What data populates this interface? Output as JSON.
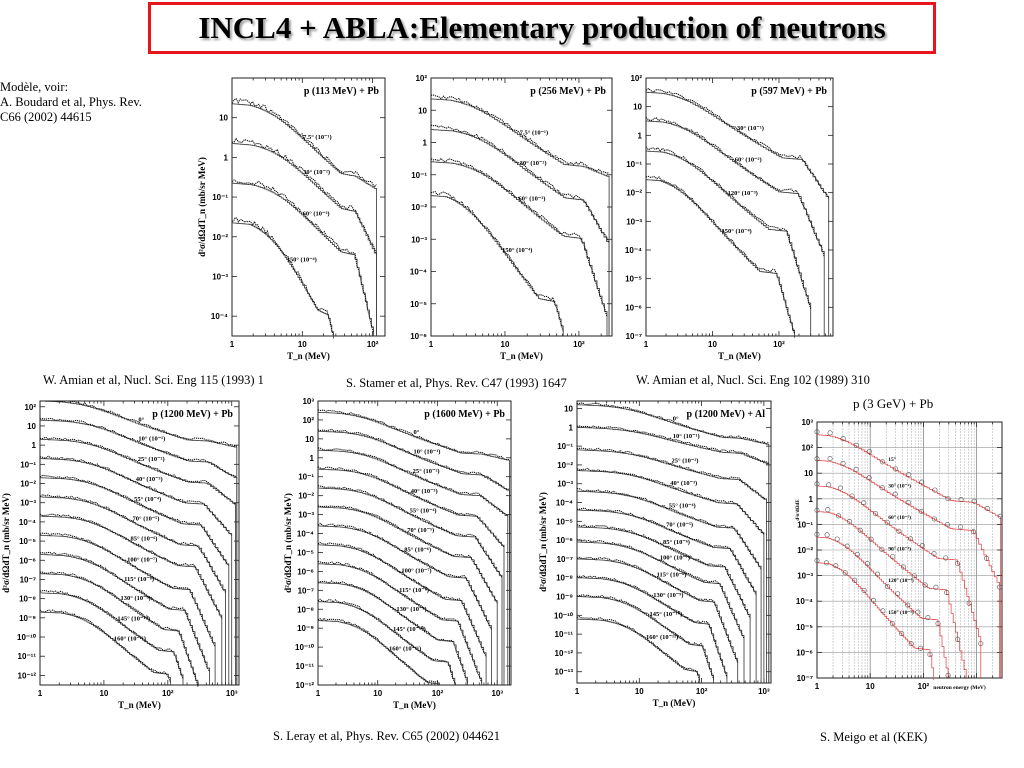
{
  "header": {
    "title": "INCL4 + ABLA:Elementary production of neutrons",
    "accent_color": "#e8141c"
  },
  "side_note": {
    "lines": [
      "Modèle, voir:",
      "A. Boudard et al, Phys. Rev.",
      "C66 (2002) 44615"
    ]
  },
  "references": {
    "amian_115": "W. Amian et al, Nucl. Sci. Eng 115 (1993) 1",
    "stamer": "S. Stamer et al, Phys. Rev. C47 (1993) 1647",
    "amian_102": "W. Amian et al, Nucl. Sci. Eng 102 (1989) 310",
    "leray": "S. Leray et al, Phys. Rev. C65 (2002) 044621",
    "meigo": "S. Meigo et al (KEK)",
    "meigo_plot_title": "p (3 GeV) + Pb"
  },
  "chart_data": [
    {
      "type": "line",
      "title": "p (113 MeV) + Pb",
      "xlabel": "T_n (MeV)",
      "ylabel": "d²σ/dΩdT_n (mb/sr MeV)",
      "xscale": "log",
      "yscale": "log",
      "xlim": [
        1,
        150
      ],
      "ylim_exp": [
        -4.5,
        2
      ],
      "x_ticks": [
        "1",
        "10",
        "10²"
      ],
      "y_ticks": [
        "10",
        "1",
        "10⁻¹",
        "10⁻²",
        "10⁻³",
        "10⁻⁴"
      ],
      "y_tick_exp": [
        1,
        0,
        -1,
        -2,
        -3,
        -4
      ],
      "series": [
        {
          "name": "7.5° (10⁻¹)",
          "start_log": 1.35,
          "knee_x": 4,
          "drop_log": 1.6,
          "end_x": 113,
          "tail": 0.1
        },
        {
          "name": "30° (10⁻²)",
          "start_log": 0.35,
          "knee_x": 5,
          "drop_log": 1.5,
          "end_x": 113,
          "tail": 0.4
        },
        {
          "name": "60° (10⁻³)",
          "start_log": -0.65,
          "knee_x": 5,
          "drop_log": 1.6,
          "end_x": 110,
          "tail": 0.8
        },
        {
          "name": "150° (10⁻⁴)",
          "start_log": -1.65,
          "knee_x": 4,
          "drop_log": 2.3,
          "end_x": 40,
          "tail": 0.6
        }
      ]
    },
    {
      "type": "line",
      "title": "p (256 MeV) + Pb",
      "xlabel": "T_n (MeV)",
      "xscale": "log",
      "yscale": "log",
      "xlim": [
        1,
        280
      ],
      "ylim_exp": [
        -6,
        2
      ],
      "x_ticks": [
        "1",
        "10",
        "10²"
      ],
      "y_ticks": [
        "10²",
        "10",
        "1",
        "10⁻¹",
        "10⁻²",
        "10⁻³",
        "10⁻⁴",
        "10⁻⁵",
        "10⁻⁶"
      ],
      "y_tick_exp": [
        2,
        1,
        0,
        -1,
        -2,
        -3,
        -4,
        -5,
        -6
      ],
      "series": [
        {
          "name": "7.5° (10⁻¹)",
          "start_log": 1.35,
          "knee_x": 4,
          "drop_log": 1.8,
          "end_x": 256,
          "tail": 0.1
        },
        {
          "name": "30° (10⁻²)",
          "start_log": 0.4,
          "knee_x": 5,
          "drop_log": 1.9,
          "end_x": 256,
          "tail": 0.5
        },
        {
          "name": "60° (10⁻³)",
          "start_log": -0.6,
          "knee_x": 5,
          "drop_log": 2.1,
          "end_x": 240,
          "tail": 0.9
        },
        {
          "name": "150° (10⁻⁴)",
          "start_log": -1.65,
          "knee_x": 3,
          "drop_log": 3.1,
          "end_x": 90,
          "tail": 0.8
        }
      ]
    },
    {
      "type": "line",
      "title": "p (597 MeV) + Pb",
      "xlabel": "T_n (MeV)",
      "xscale": "log",
      "yscale": "log",
      "xlim": [
        1,
        650
      ],
      "ylim_exp": [
        -7,
        2
      ],
      "x_ticks": [
        "1",
        "10",
        "10²"
      ],
      "y_ticks": [
        "10²",
        "10",
        "1",
        "10⁻¹",
        "10⁻²",
        "10⁻³",
        "10⁻⁴",
        "10⁻⁵",
        "10⁻⁶",
        "10⁻⁷"
      ],
      "y_tick_exp": [
        2,
        1,
        0,
        -1,
        -2,
        -3,
        -4,
        -5,
        -6,
        -7
      ],
      "series": [
        {
          "name": "30° (10⁻¹)",
          "start_log": 1.5,
          "knee_x": 4,
          "drop_log": 2.0,
          "end_x": 560,
          "tail": 0.5
        },
        {
          "name": "60° (10⁻²)",
          "start_log": 0.5,
          "knee_x": 4,
          "drop_log": 2.2,
          "end_x": 480,
          "tail": 0.8
        },
        {
          "name": "120° (10⁻³)",
          "start_log": -0.55,
          "knee_x": 4,
          "drop_log": 2.5,
          "end_x": 300,
          "tail": 1.0
        },
        {
          "name": "150° (10⁻⁴)",
          "start_log": -1.55,
          "knee_x": 3,
          "drop_log": 3.0,
          "end_x": 200,
          "tail": 1.0
        }
      ]
    },
    {
      "type": "line",
      "title": "p (1200 MeV) + Pb",
      "xlabel": "T_n (MeV)",
      "ylabel": "d²σ/dΩdT_n (mb/sr MeV)",
      "xscale": "log",
      "yscale": "log",
      "xlim": [
        1,
        1300
      ],
      "ylim_exp": [
        -12.5,
        2.3
      ],
      "x_ticks": [
        "1",
        "10",
        "10²",
        "10³"
      ],
      "y_ticks": [
        "10²",
        "10",
        "1",
        "10⁻¹",
        "10⁻²",
        "10⁻³",
        "10⁻⁴",
        "10⁻⁵",
        "10⁻⁶",
        "10⁻⁷",
        "10⁻⁸",
        "10⁻⁹",
        "10⁻¹⁰",
        "10⁻¹¹",
        "10⁻¹²"
      ],
      "y_tick_exp": [
        2,
        1,
        0,
        -1,
        -2,
        -3,
        -4,
        -5,
        -6,
        -7,
        -8,
        -9,
        -10,
        -11,
        -12
      ],
      "series": [
        {
          "name": "0°",
          "start_log": 2.3,
          "knee_x": 6,
          "drop_log": 1.7,
          "end_x": 1200,
          "tail": 0.1
        },
        {
          "name": "10° (10⁻¹)",
          "start_log": 1.3,
          "knee_x": 8,
          "drop_log": 1.8,
          "end_x": 1200,
          "tail": 0.3
        },
        {
          "name": "25° (10⁻²)",
          "start_log": 0.3,
          "knee_x": 8,
          "drop_log": 1.9,
          "end_x": 1150,
          "tail": 0.4
        },
        {
          "name": "40° (10⁻³)",
          "start_log": -0.7,
          "knee_x": 8,
          "drop_log": 2.0,
          "end_x": 1000,
          "tail": 0.6
        },
        {
          "name": "55° (10⁻⁴)",
          "start_log": -1.7,
          "knee_x": 8,
          "drop_log": 2.1,
          "end_x": 900,
          "tail": 0.8
        },
        {
          "name": "70° (10⁻⁵)",
          "start_log": -2.7,
          "knee_x": 8,
          "drop_log": 2.2,
          "end_x": 800,
          "tail": 0.9
        },
        {
          "name": "85° (10⁻⁶)",
          "start_log": -3.7,
          "knee_x": 8,
          "drop_log": 2.3,
          "end_x": 700,
          "tail": 1.0
        },
        {
          "name": "100° (10⁻⁷)",
          "start_log": -4.7,
          "knee_x": 7,
          "drop_log": 2.5,
          "end_x": 550,
          "tail": 1.1
        },
        {
          "name": "115° (10⁻⁸)",
          "start_log": -5.7,
          "knee_x": 7,
          "drop_log": 2.6,
          "end_x": 450,
          "tail": 1.2
        },
        {
          "name": "130° (10⁻⁹)",
          "start_log": -6.7,
          "knee_x": 7,
          "drop_log": 2.7,
          "end_x": 350,
          "tail": 1.3
        },
        {
          "name": "145° (10⁻¹⁰)",
          "start_log": -7.7,
          "knee_x": 6,
          "drop_log": 2.8,
          "end_x": 280,
          "tail": 1.3
        },
        {
          "name": "160° (10⁻¹¹)",
          "start_log": -8.7,
          "knee_x": 6,
          "drop_log": 3.0,
          "end_x": 220,
          "tail": 1.3
        }
      ]
    },
    {
      "type": "line",
      "title": "p (1600 MeV) + Pb",
      "xlabel": "T_n (MeV)",
      "ylabel": "d²σ/dΩdT_n (mb/sr MeV)",
      "xscale": "log",
      "yscale": "log",
      "xlim": [
        1,
        1700
      ],
      "ylim_exp": [
        -12,
        3
      ],
      "x_ticks": [
        "1",
        "10",
        "10²",
        "10³"
      ],
      "y_ticks": [
        "10³",
        "10²",
        "10",
        "1",
        "10⁻¹",
        "10⁻²",
        "10⁻³",
        "10⁻⁴",
        "10⁻⁵",
        "10⁻⁶",
        "10⁻⁷",
        "10⁻⁸",
        "10⁻⁹",
        "10⁻¹⁰",
        "10⁻¹¹",
        "10⁻¹²"
      ],
      "y_tick_exp": [
        3,
        2,
        1,
        0,
        -1,
        -2,
        -3,
        -4,
        -5,
        -6,
        -7,
        -8,
        -9,
        -10,
        -11,
        -12
      ],
      "series": [
        {
          "name": "0°",
          "start_log": 2.4,
          "knee_x": 6,
          "drop_log": 1.8,
          "end_x": 1600,
          "tail": 0.1
        },
        {
          "name": "10° (10⁻¹)",
          "start_log": 1.4,
          "knee_x": 8,
          "drop_log": 1.9,
          "end_x": 1600,
          "tail": 0.3
        },
        {
          "name": "25° (10⁻²)",
          "start_log": 0.4,
          "knee_x": 8,
          "drop_log": 2.0,
          "end_x": 1500,
          "tail": 0.4
        },
        {
          "name": "40° (10⁻³)",
          "start_log": -0.6,
          "knee_x": 8,
          "drop_log": 2.1,
          "end_x": 1300,
          "tail": 0.6
        },
        {
          "name": "55° (10⁻⁴)",
          "start_log": -1.6,
          "knee_x": 8,
          "drop_log": 2.2,
          "end_x": 1200,
          "tail": 0.8
        },
        {
          "name": "70° (10⁻⁵)",
          "start_log": -2.6,
          "knee_x": 8,
          "drop_log": 2.3,
          "end_x": 1000,
          "tail": 0.9
        },
        {
          "name": "85° (10⁻⁶)",
          "start_log": -3.6,
          "knee_x": 8,
          "drop_log": 2.4,
          "end_x": 800,
          "tail": 1.0
        },
        {
          "name": "100° (10⁻⁷)",
          "start_log": -4.6,
          "knee_x": 7,
          "drop_log": 2.6,
          "end_x": 650,
          "tail": 1.1
        },
        {
          "name": "115° (10⁻⁸)",
          "start_log": -5.6,
          "knee_x": 7,
          "drop_log": 2.7,
          "end_x": 550,
          "tail": 1.2
        },
        {
          "name": "130° (10⁻⁹)",
          "start_log": -6.6,
          "knee_x": 7,
          "drop_log": 2.8,
          "end_x": 450,
          "tail": 1.3
        },
        {
          "name": "145° (10⁻¹⁰)",
          "start_log": -7.6,
          "knee_x": 6,
          "drop_log": 2.9,
          "end_x": 350,
          "tail": 1.3
        },
        {
          "name": "160° (10⁻¹¹)",
          "start_log": -8.6,
          "knee_x": 6,
          "drop_log": 3.1,
          "end_x": 260,
          "tail": 1.3
        }
      ]
    },
    {
      "type": "line",
      "title": "p (1200 MeV) + Al",
      "xlabel": "T_n (MeV)",
      "ylabel": "d²σ/dΩdT_n (mb/sr MeV)",
      "xscale": "log",
      "yscale": "log",
      "xlim": [
        1,
        1300
      ],
      "ylim_exp": [
        -13.6,
        1.4
      ],
      "x_ticks": [
        "1",
        "10",
        "10²",
        "10³"
      ],
      "y_ticks": [
        "10",
        "1",
        "10⁻¹",
        "10⁻²",
        "10⁻³",
        "10⁻⁴",
        "10⁻⁵",
        "10⁻⁶",
        "10⁻⁷",
        "10⁻⁸",
        "10⁻⁹",
        "10⁻¹⁰",
        "10⁻¹¹",
        "10⁻¹²",
        "10⁻¹³"
      ],
      "y_tick_exp": [
        1,
        0,
        -1,
        -2,
        -3,
        -4,
        -5,
        -6,
        -7,
        -8,
        -9,
        -10,
        -11,
        -12,
        -13
      ],
      "series": [
        {
          "name": "0°",
          "start_log": 1.2,
          "knee_x": 8,
          "drop_log": 1.4,
          "end_x": 1200,
          "tail": 0.1
        },
        {
          "name": "10° (10⁻¹)",
          "start_log": 0.0,
          "knee_x": 10,
          "drop_log": 1.0,
          "end_x": 1200,
          "tail": 0.2
        },
        {
          "name": "25° (10⁻²)",
          "start_log": -1.2,
          "knee_x": 10,
          "drop_log": 1.2,
          "end_x": 1100,
          "tail": 0.4
        },
        {
          "name": "40° (10⁻³)",
          "start_log": -2.3,
          "knee_x": 10,
          "drop_log": 1.4,
          "end_x": 1000,
          "tail": 0.6
        },
        {
          "name": "55° (10⁻⁴)",
          "start_log": -3.4,
          "knee_x": 10,
          "drop_log": 1.6,
          "end_x": 900,
          "tail": 0.8
        },
        {
          "name": "70° (10⁻⁵)",
          "start_log": -4.4,
          "knee_x": 10,
          "drop_log": 1.7,
          "end_x": 750,
          "tail": 0.9
        },
        {
          "name": "85° (10⁻⁶)",
          "start_log": -5.3,
          "knee_x": 10,
          "drop_log": 1.8,
          "end_x": 600,
          "tail": 1.0
        },
        {
          "name": "100° (10⁻⁷)",
          "start_log": -6.1,
          "knee_x": 9,
          "drop_log": 1.9,
          "end_x": 480,
          "tail": 1.1
        },
        {
          "name": "115° (10⁻⁸)",
          "start_log": -7.0,
          "knee_x": 9,
          "drop_log": 2.0,
          "end_x": 380,
          "tail": 1.2
        },
        {
          "name": "130° (10⁻⁹)",
          "start_log": -8.0,
          "knee_x": 8,
          "drop_log": 2.2,
          "end_x": 300,
          "tail": 1.3
        },
        {
          "name": "145° (10⁻¹⁰)",
          "start_log": -9.0,
          "knee_x": 8,
          "drop_log": 2.4,
          "end_x": 230,
          "tail": 1.3
        },
        {
          "name": "160° (10⁻¹¹)",
          "start_log": -10.2,
          "knee_x": 8,
          "drop_log": 2.6,
          "end_x": 180,
          "tail": 1.3
        }
      ]
    },
    {
      "type": "scatter",
      "title": "p (3 GeV) + Pb",
      "xlabel": "neutron energy (MeV)",
      "xscale": "log",
      "yscale": "log",
      "xlim": [
        1,
        3000
      ],
      "ylim_exp": [
        -7,
        3
      ],
      "x_ticks": [
        "1",
        "10",
        "10²"
      ],
      "y_ticks": [
        "10³",
        "10²",
        "10",
        "1",
        "10⁻¹",
        "10⁻²",
        "10⁻³",
        "10⁻⁴",
        "10⁻⁵",
        "10⁻⁶",
        "10⁻⁷"
      ],
      "y_tick_exp": [
        3,
        2,
        1,
        0,
        -1,
        -2,
        -3,
        -4,
        -5,
        -6,
        -7
      ],
      "data_color": "#555555",
      "model_color": "#e23a3a",
      "series": [
        {
          "name": "15°",
          "start_log": 2.5,
          "knee_x": 3,
          "drop_log": 2.2,
          "end_x": 2800,
          "tail": 0.2
        },
        {
          "name": "30° (10⁻¹)",
          "start_log": 1.5,
          "knee_x": 3,
          "drop_log": 2.3,
          "end_x": 2700,
          "tail": 0.8
        },
        {
          "name": "60° (10⁻²)",
          "start_log": 0.5,
          "knee_x": 3,
          "drop_log": 2.5,
          "end_x": 1200,
          "tail": 1.2
        },
        {
          "name": "90° (10⁻³)",
          "start_log": -0.5,
          "knee_x": 3,
          "drop_log": 2.7,
          "end_x": 700,
          "tail": 1.4
        },
        {
          "name": "120° (10⁻⁴)",
          "start_log": -1.5,
          "knee_x": 3,
          "drop_log": 2.9,
          "end_x": 450,
          "tail": 1.6
        },
        {
          "name": "150° (10⁻⁵)",
          "start_log": -2.5,
          "knee_x": 3,
          "drop_log": 3.1,
          "end_x": 300,
          "tail": 1.8
        }
      ]
    }
  ]
}
